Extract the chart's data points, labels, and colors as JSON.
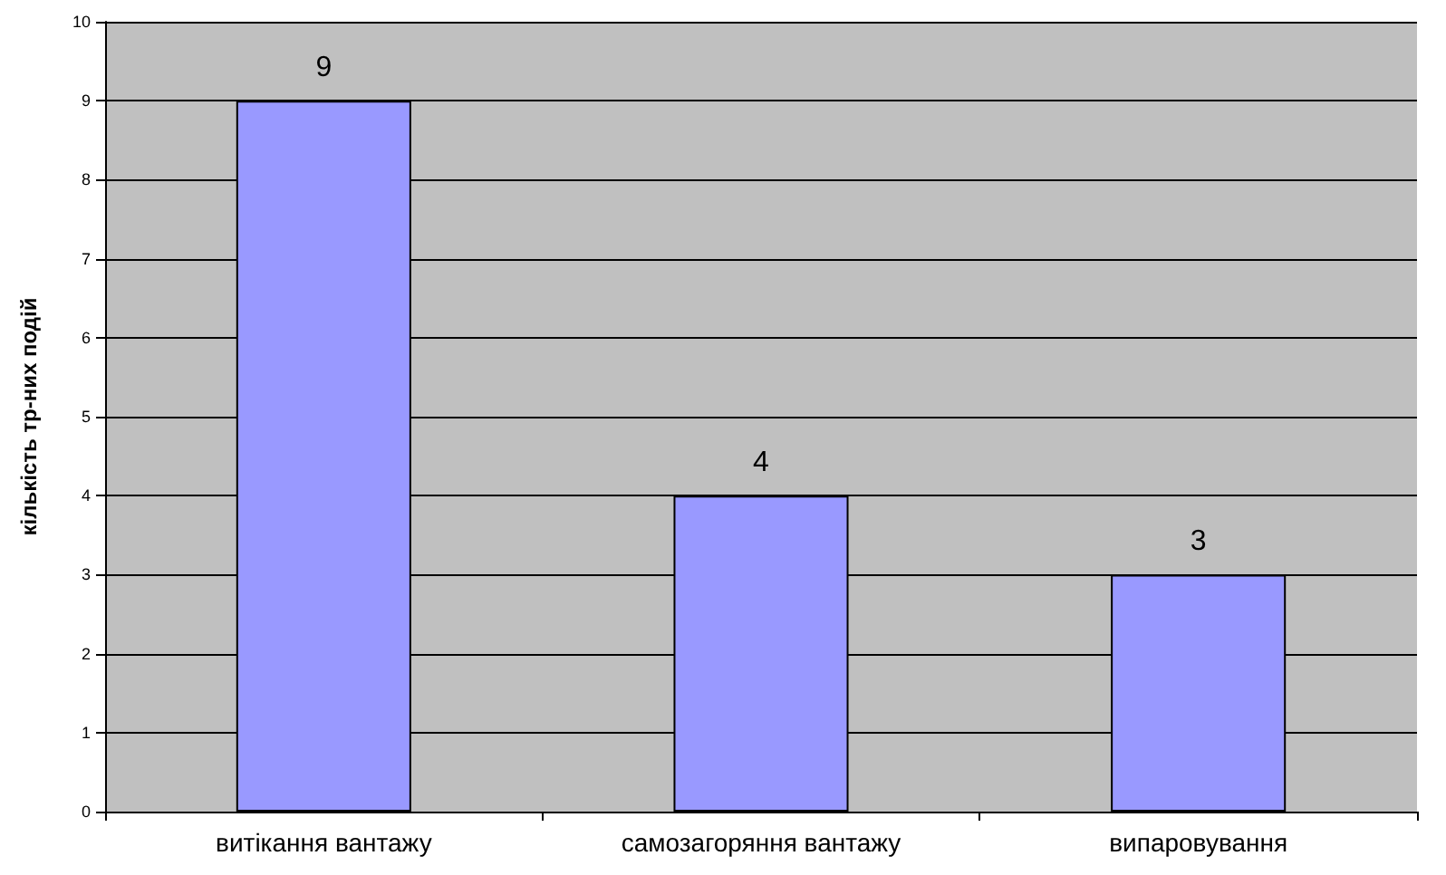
{
  "chart_data": {
    "type": "bar",
    "ylabel": "кількість тр-них подій",
    "categories": [
      "витікання вантажу",
      "самозагоряння вантажу",
      "випаровування"
    ],
    "values": [
      9,
      4,
      3
    ],
    "color": "#9999ff",
    "ylim": [
      0,
      10
    ],
    "yticks": [
      0,
      1,
      2,
      3,
      4,
      5,
      6,
      7,
      8,
      9,
      10
    ],
    "grid": "y",
    "data_labels": true
  }
}
